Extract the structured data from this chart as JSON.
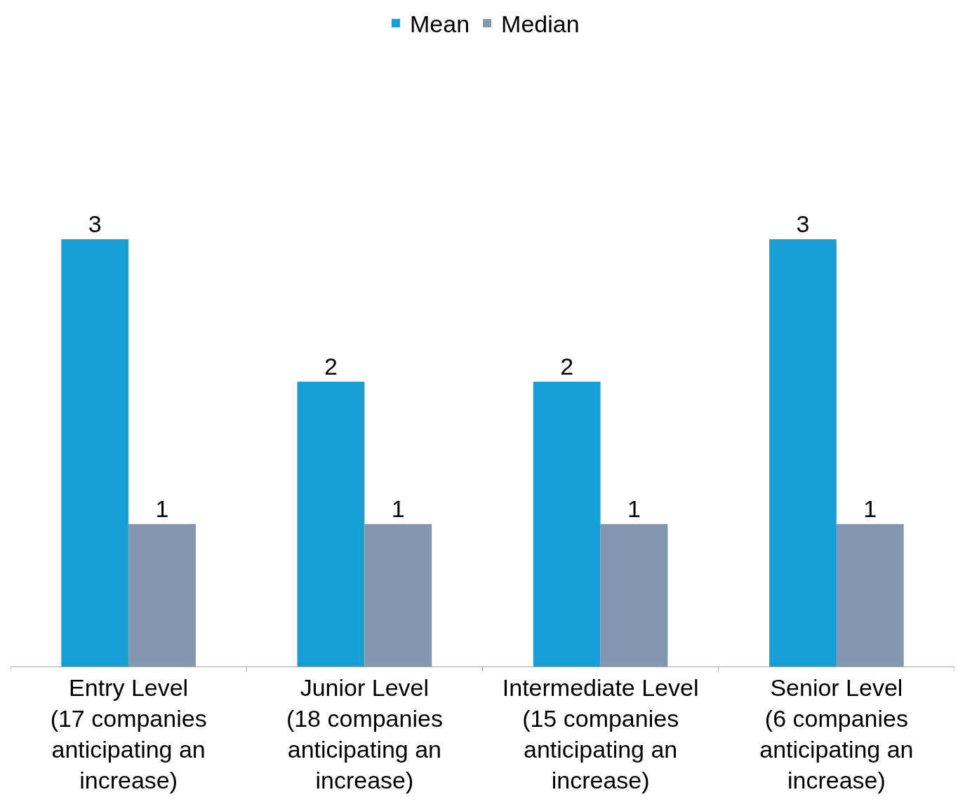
{
  "chart_data": {
    "type": "bar",
    "categories": [
      "Entry Level\n(17 companies\nanticipating an\nincrease)",
      "Junior Level\n(18 companies\nanticipating an\nincrease)",
      "Intermediate Level\n(15 companies\nanticipating an\nincrease)",
      "Senior Level\n(6 companies\nanticipating an\nincrease)"
    ],
    "series": [
      {
        "name": "Mean",
        "color": "#17a0d8",
        "values": [
          3,
          2,
          2,
          3
        ]
      },
      {
        "name": "Median",
        "color": "#8497b0",
        "values": [
          1,
          1,
          1,
          1
        ]
      }
    ],
    "data_labels": true,
    "legend": "top",
    "grid": false
  }
}
